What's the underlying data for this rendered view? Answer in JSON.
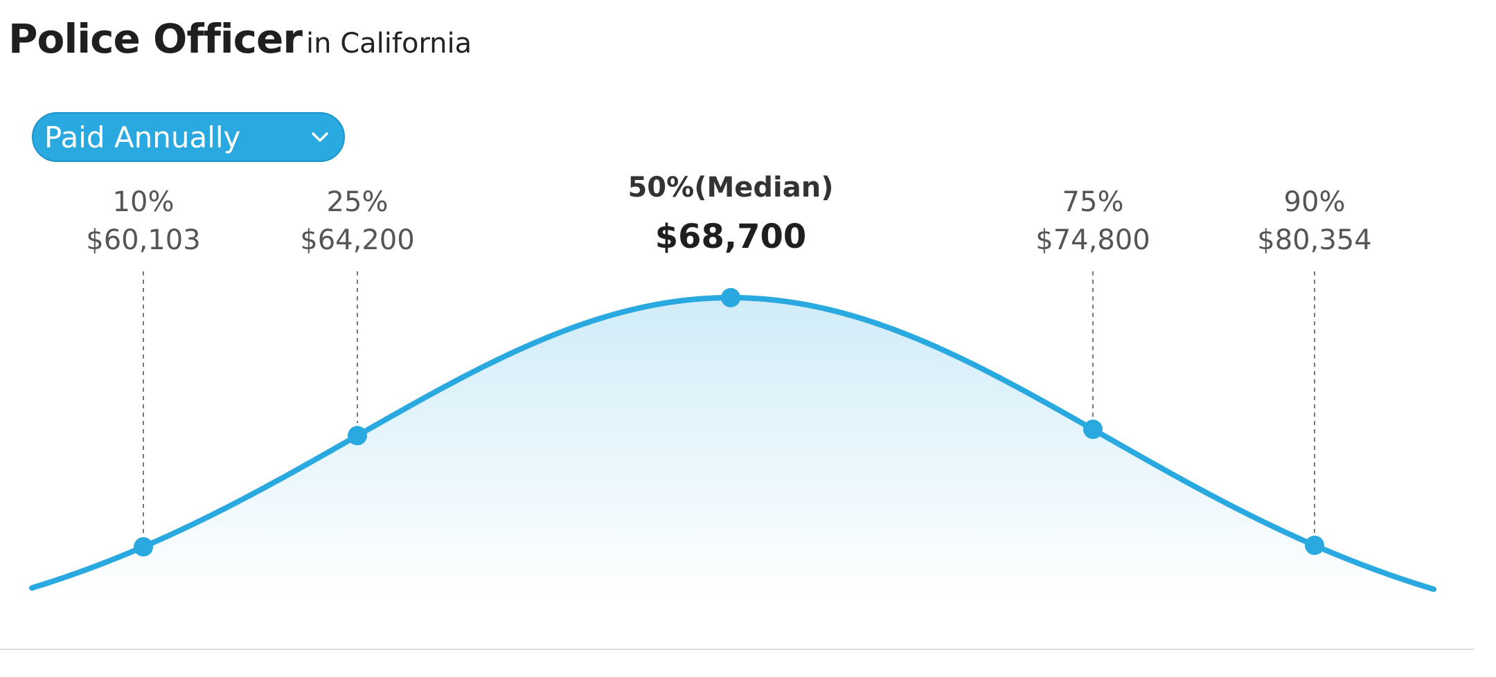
{
  "header": {
    "job_title": "Police Officer",
    "location_text": "in California"
  },
  "pay_period": {
    "selected": "Paid Annually"
  },
  "colors": {
    "accent": "#2aa9e0",
    "title": "#1f1f1f",
    "label": "#555555",
    "baseline": "#d9d9d9"
  },
  "chart_data": {
    "type": "area",
    "x_unit": "USD per year",
    "percentiles": [
      {
        "label": "10%",
        "value": 60103,
        "value_text": "$60,103"
      },
      {
        "label": "25%",
        "value": 64200,
        "value_text": "$64,200"
      },
      {
        "label": "50%(Median)",
        "value": 68700,
        "value_text": "$68,700",
        "is_median": true
      },
      {
        "label": "75%",
        "value": 74800,
        "value_text": "$74,800"
      },
      {
        "label": "90%",
        "value": 80354,
        "value_text": "$80,354"
      }
    ],
    "grid": false,
    "legend": "none"
  }
}
